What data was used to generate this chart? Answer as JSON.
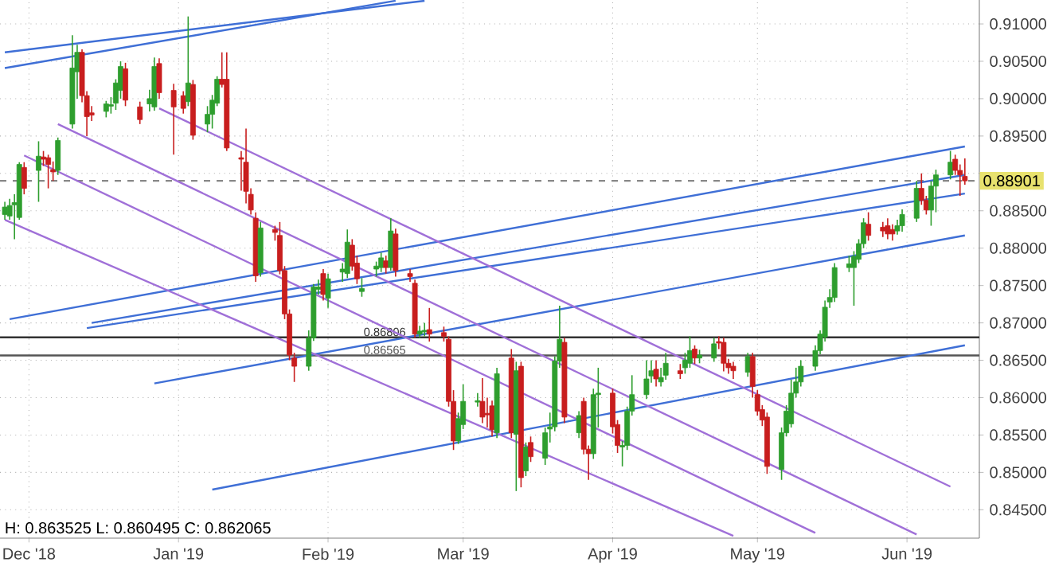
{
  "chart_data": {
    "type": "candlestick",
    "x": [
      "2018-11-26",
      "2018-11-27",
      "2018-11-28",
      "2018-11-29",
      "2018-11-30",
      "2018-12-03",
      "2018-12-04",
      "2018-12-05",
      "2018-12-06",
      "2018-12-07",
      "2018-12-10",
      "2018-12-11",
      "2018-12-12",
      "2018-12-13",
      "2018-12-14",
      "2018-12-17",
      "2018-12-18",
      "2018-12-19",
      "2018-12-20",
      "2018-12-21",
      "2018-12-24",
      "2018-12-26",
      "2018-12-27",
      "2018-12-28",
      "2018-12-31",
      "2019-01-02",
      "2019-01-03",
      "2019-01-04",
      "2019-01-07",
      "2019-01-08",
      "2019-01-09",
      "2019-01-10",
      "2019-01-11",
      "2019-01-14",
      "2019-01-15",
      "2019-01-16",
      "2019-01-17",
      "2019-01-18",
      "2019-01-21",
      "2019-01-22",
      "2019-01-23",
      "2019-01-24",
      "2019-01-25",
      "2019-01-28",
      "2019-01-29",
      "2019-01-30",
      "2019-01-31",
      "2019-02-01",
      "2019-02-04",
      "2019-02-05",
      "2019-02-06",
      "2019-02-07",
      "2019-02-08",
      "2019-02-11",
      "2019-02-12",
      "2019-02-13",
      "2019-02-14",
      "2019-02-15",
      "2019-02-18",
      "2019-02-19",
      "2019-02-20",
      "2019-02-21",
      "2019-02-22",
      "2019-02-25",
      "2019-02-26",
      "2019-02-27",
      "2019-02-28",
      "2019-03-01",
      "2019-03-04",
      "2019-03-05",
      "2019-03-06",
      "2019-03-07",
      "2019-03-08",
      "2019-03-11",
      "2019-03-12",
      "2019-03-13",
      "2019-03-14",
      "2019-03-15",
      "2019-03-18",
      "2019-03-19",
      "2019-03-20",
      "2019-03-21",
      "2019-03-22",
      "2019-03-25",
      "2019-03-26",
      "2019-03-27",
      "2019-03-28",
      "2019-03-29",
      "2019-04-01",
      "2019-04-02",
      "2019-04-03",
      "2019-04-04",
      "2019-04-05",
      "2019-04-08",
      "2019-04-09",
      "2019-04-10",
      "2019-04-11",
      "2019-04-12",
      "2019-04-15",
      "2019-04-16",
      "2019-04-17",
      "2019-04-18",
      "2019-04-19",
      "2019-04-22",
      "2019-04-23",
      "2019-04-24",
      "2019-04-25",
      "2019-04-26",
      "2019-04-29",
      "2019-04-30",
      "2019-05-01",
      "2019-05-02",
      "2019-05-03",
      "2019-05-06",
      "2019-05-07",
      "2019-05-08",
      "2019-05-09",
      "2019-05-10",
      "2019-05-13",
      "2019-05-14",
      "2019-05-15",
      "2019-05-16",
      "2019-05-17",
      "2019-05-20",
      "2019-05-21",
      "2019-05-22",
      "2019-05-23",
      "2019-05-24",
      "2019-05-27",
      "2019-05-28",
      "2019-05-29",
      "2019-05-30",
      "2019-05-31",
      "2019-06-03",
      "2019-06-04",
      "2019-06-05",
      "2019-06-06",
      "2019-06-07",
      "2019-06-10",
      "2019-06-11",
      "2019-06-12",
      "2019-06-13"
    ],
    "ohlc": [
      [
        0.8845,
        0.8862,
        0.8838,
        0.8855
      ],
      [
        0.8843,
        0.8866,
        0.8838,
        0.8857
      ],
      [
        0.8858,
        0.8872,
        0.8812,
        0.8861
      ],
      [
        0.8841,
        0.8915,
        0.8838,
        0.8912
      ],
      [
        0.8908,
        0.8915,
        0.8872,
        0.888
      ],
      [
        0.8904,
        0.8943,
        0.8862,
        0.8923
      ],
      [
        0.8922,
        0.893,
        0.891,
        0.8919
      ],
      [
        0.8921,
        0.8925,
        0.888,
        0.8912
      ],
      [
        0.8905,
        0.8916,
        0.889,
        0.8902
      ],
      [
        0.8904,
        0.8948,
        0.8898,
        0.8944
      ],
      [
        0.8966,
        0.9085,
        0.896,
        0.9041
      ],
      [
        0.9036,
        0.9072,
        0.9,
        0.9062
      ],
      [
        0.9062,
        0.9066,
        0.8995,
        0.9004
      ],
      [
        0.9004,
        0.901,
        0.895,
        0.8976
      ],
      [
        0.8981,
        0.899,
        0.897,
        0.8978
      ],
      [
        0.8983,
        0.8997,
        0.8975,
        0.8993
      ],
      [
        0.899,
        0.9002,
        0.898,
        0.8992
      ],
      [
        0.8994,
        0.9026,
        0.8985,
        0.9021
      ],
      [
        0.9011,
        0.905,
        0.9,
        0.9043
      ],
      [
        0.904,
        0.9048,
        0.899,
        0.8998
      ],
      [
        0.8989,
        0.8996,
        0.8966,
        0.8972
      ],
      [
        0.8993,
        0.9012,
        0.8983,
        0.9
      ],
      [
        0.8989,
        0.9055,
        0.8984,
        0.9043
      ],
      [
        0.9047,
        0.9054,
        0.9,
        0.9008
      ],
      [
        0.9011,
        0.902,
        0.8925,
        0.8989
      ],
      [
        0.9004,
        0.901,
        0.898,
        0.8987
      ],
      [
        0.8996,
        0.911,
        0.899,
        0.9021
      ],
      [
        0.9019,
        0.9025,
        0.8945,
        0.8951
      ],
      [
        0.8966,
        0.899,
        0.8955,
        0.8979
      ],
      [
        0.8979,
        0.9005,
        0.896,
        0.8998
      ],
      [
        0.8994,
        0.903,
        0.899,
        0.9026
      ],
      [
        0.9026,
        0.9062,
        0.9015,
        0.9019
      ],
      [
        0.9026,
        0.9062,
        0.893,
        0.8934
      ],
      [
        0.8921,
        0.893,
        0.8877,
        0.8919
      ],
      [
        0.8915,
        0.896,
        0.886,
        0.8876
      ],
      [
        0.8872,
        0.888,
        0.8845,
        0.8851
      ],
      [
        0.884,
        0.8848,
        0.8755,
        0.8763
      ],
      [
        0.8767,
        0.8835,
        0.8762,
        0.8827
      ],
      [
        0.8825,
        0.883,
        0.881,
        0.8821
      ],
      [
        0.8817,
        0.8835,
        0.8765,
        0.877
      ],
      [
        0.877,
        0.8776,
        0.8705,
        0.8712
      ],
      [
        0.8712,
        0.8718,
        0.865,
        0.8657
      ],
      [
        0.8653,
        0.866,
        0.8621,
        0.8642
      ],
      [
        0.8642,
        0.869,
        0.8636,
        0.868
      ],
      [
        0.868,
        0.8752,
        0.8676,
        0.8748
      ],
      [
        0.8745,
        0.8758,
        0.8738,
        0.8748
      ],
      [
        0.8766,
        0.8772,
        0.873,
        0.8738
      ],
      [
        0.8733,
        0.8766,
        0.872,
        0.8759
      ],
      [
        0.8768,
        0.878,
        0.8755,
        0.8772
      ],
      [
        0.8766,
        0.8825,
        0.876,
        0.8808
      ],
      [
        0.8804,
        0.8812,
        0.877,
        0.8776
      ],
      [
        0.878,
        0.879,
        0.8752,
        0.8759
      ],
      [
        0.8742,
        0.876,
        0.8735,
        0.8746
      ],
      [
        0.8772,
        0.8782,
        0.8762,
        0.8776
      ],
      [
        0.8774,
        0.8794,
        0.8768,
        0.8787
      ],
      [
        0.8783,
        0.879,
        0.8766,
        0.8774
      ],
      [
        0.8774,
        0.884,
        0.877,
        0.8823
      ],
      [
        0.8819,
        0.8826,
        0.8762,
        0.877
      ],
      [
        0.8766,
        0.8772,
        0.8755,
        0.8762
      ],
      [
        0.8753,
        0.8758,
        0.868,
        0.8685
      ],
      [
        0.8685,
        0.8696,
        0.868,
        0.8689
      ],
      [
        0.8688,
        0.87,
        0.8682,
        0.869
      ],
      [
        0.8691,
        0.872,
        0.8675,
        0.8685
      ],
      [
        0.8687,
        0.8695,
        0.8675,
        0.8682
      ],
      [
        0.8678,
        0.8682,
        0.8588,
        0.8595
      ],
      [
        0.8595,
        0.861,
        0.853,
        0.8542
      ],
      [
        0.8542,
        0.858,
        0.8538,
        0.8572
      ],
      [
        0.8564,
        0.8618,
        0.8558,
        0.8595
      ],
      [
        0.8594,
        0.8606,
        0.8588,
        0.8596
      ],
      [
        0.8595,
        0.8626,
        0.8566,
        0.8574
      ],
      [
        0.8579,
        0.86,
        0.856,
        0.8577
      ],
      [
        0.8589,
        0.8596,
        0.8548,
        0.8557
      ],
      [
        0.8553,
        0.864,
        0.8546,
        0.8632
      ],
      [
        0.8653,
        0.8665,
        0.8546,
        0.8553
      ],
      [
        0.8551,
        0.8648,
        0.8475,
        0.8636
      ],
      [
        0.8642,
        0.8648,
        0.848,
        0.8493
      ],
      [
        0.8502,
        0.854,
        0.8495,
        0.8534
      ],
      [
        0.854,
        0.8548,
        0.8514,
        0.8521
      ],
      [
        0.8519,
        0.856,
        0.851,
        0.8553
      ],
      [
        0.8558,
        0.858,
        0.854,
        0.8561
      ],
      [
        0.8561,
        0.8655,
        0.8555,
        0.8649
      ],
      [
        0.8649,
        0.8723,
        0.864,
        0.8678
      ],
      [
        0.8674,
        0.868,
        0.8566,
        0.8574
      ],
      [
        0.8553,
        0.8582,
        0.8546,
        0.8576
      ],
      [
        0.8595,
        0.86,
        0.8524,
        0.8531
      ],
      [
        0.8531,
        0.8536,
        0.849,
        0.8525
      ],
      [
        0.8525,
        0.8612,
        0.8518,
        0.8604
      ],
      [
        0.8604,
        0.864,
        0.856,
        0.8606
      ],
      [
        0.8606,
        0.8612,
        0.8552,
        0.8561
      ],
      [
        0.8564,
        0.857,
        0.8526,
        0.8536
      ],
      [
        0.8534,
        0.8542,
        0.8508,
        0.8536
      ],
      [
        0.8536,
        0.8588,
        0.853,
        0.8582
      ],
      [
        0.8582,
        0.863,
        0.8576,
        0.8604
      ],
      [
        0.8604,
        0.865,
        0.8598,
        0.8625
      ],
      [
        0.8629,
        0.865,
        0.862,
        0.8636
      ],
      [
        0.8638,
        0.865,
        0.8615,
        0.8625
      ],
      [
        0.8621,
        0.864,
        0.8615,
        0.8627
      ],
      [
        0.863,
        0.866,
        0.8624,
        0.8646
      ],
      [
        0.8636,
        0.8645,
        0.8625,
        0.8632
      ],
      [
        0.864,
        0.866,
        0.8632,
        0.865
      ],
      [
        0.8646,
        0.8682,
        0.864,
        0.8663
      ],
      [
        0.8665,
        0.867,
        0.8645,
        0.8653
      ],
      [
        0.8653,
        0.8664,
        0.8646,
        0.8657
      ],
      [
        0.8653,
        0.868,
        0.8648,
        0.8672
      ],
      [
        0.8675,
        0.8682,
        0.8665,
        0.8673
      ],
      [
        0.8674,
        0.868,
        0.8635,
        0.8646
      ],
      [
        0.8646,
        0.8652,
        0.8632,
        0.864
      ],
      [
        0.8642,
        0.8648,
        0.8625,
        0.8636
      ],
      [
        0.8634,
        0.866,
        0.8628,
        0.8655
      ],
      [
        0.8655,
        0.866,
        0.86,
        0.8615
      ],
      [
        0.8604,
        0.861,
        0.8576,
        0.8582
      ],
      [
        0.8584,
        0.859,
        0.8562,
        0.857
      ],
      [
        0.8574,
        0.858,
        0.8498,
        0.8508
      ],
      [
        0.8504,
        0.856,
        0.849,
        0.8553
      ],
      [
        0.8553,
        0.859,
        0.8548,
        0.8582
      ],
      [
        0.8565,
        0.8624,
        0.856,
        0.8606
      ],
      [
        0.8606,
        0.864,
        0.86,
        0.8621
      ],
      [
        0.8621,
        0.865,
        0.8615,
        0.8642
      ],
      [
        0.8642,
        0.867,
        0.8636,
        0.8663
      ],
      [
        0.8663,
        0.869,
        0.8658,
        0.8685
      ],
      [
        0.8681,
        0.873,
        0.8675,
        0.8721
      ],
      [
        0.8728,
        0.8745,
        0.872,
        0.8734
      ],
      [
        0.8734,
        0.878,
        0.8728,
        0.8774
      ],
      [
        0.8774,
        0.879,
        0.8768,
        0.8779
      ],
      [
        0.8774,
        0.8796,
        0.8723,
        0.8789
      ],
      [
        0.8785,
        0.8812,
        0.878,
        0.8806
      ],
      [
        0.8806,
        0.884,
        0.88,
        0.8834
      ],
      [
        0.8832,
        0.8848,
        0.881,
        0.8817
      ],
      [
        0.8828,
        0.8835,
        0.8815,
        0.8823
      ],
      [
        0.883,
        0.884,
        0.8812,
        0.8819
      ],
      [
        0.8825,
        0.8832,
        0.881,
        0.8819
      ],
      [
        0.8823,
        0.8838,
        0.8818,
        0.883
      ],
      [
        0.883,
        0.8852,
        0.8822,
        0.8845
      ],
      [
        0.884,
        0.889,
        0.8835,
        0.888
      ],
      [
        0.888,
        0.89,
        0.8858,
        0.8864
      ],
      [
        0.8864,
        0.887,
        0.8845,
        0.8851
      ],
      [
        0.8851,
        0.889,
        0.883,
        0.8883
      ],
      [
        0.8883,
        0.8905,
        0.8848,
        0.8898
      ],
      [
        0.8898,
        0.893,
        0.8892,
        0.8915
      ],
      [
        0.8919,
        0.8925,
        0.8898,
        0.8904
      ],
      [
        0.8904,
        0.8912,
        0.887,
        0.8898
      ],
      [
        0.8896,
        0.892,
        0.8885,
        0.889
      ]
    ],
    "colors": [
      "#2e9e2e",
      "#2e9e2e",
      "#2e9e2e",
      "#2e9e2e",
      "#c81e1e",
      "#2e9e2e",
      "#c81e1e",
      "#c81e1e",
      "#c81e1e",
      "#2e9e2e",
      "#2e9e2e",
      "#2e9e2e",
      "#c81e1e",
      "#c81e1e",
      "#c81e1e",
      "#2e9e2e",
      "#2e9e2e",
      "#2e9e2e",
      "#2e9e2e",
      "#c81e1e",
      "#c81e1e",
      "#2e9e2e",
      "#2e9e2e",
      "#c81e1e",
      "#c81e1e",
      "#c81e1e",
      "#2e9e2e",
      "#c81e1e",
      "#2e9e2e",
      "#2e9e2e",
      "#2e9e2e",
      "#c81e1e",
      "#c81e1e",
      "#c81e1e",
      "#c81e1e",
      "#c81e1e",
      "#c81e1e",
      "#2e9e2e",
      "#c81e1e",
      "#c81e1e",
      "#c81e1e",
      "#c81e1e",
      "#c81e1e",
      "#2e9e2e",
      "#2e9e2e",
      "#2e9e2e",
      "#c81e1e",
      "#2e9e2e",
      "#2e9e2e",
      "#2e9e2e",
      "#c81e1e",
      "#c81e1e",
      "#2e9e2e",
      "#2e9e2e",
      "#2e9e2e",
      "#c81e1e",
      "#2e9e2e",
      "#c81e1e",
      "#c81e1e",
      "#c81e1e",
      "#2e9e2e",
      "#2e9e2e",
      "#c81e1e",
      "#c81e1e",
      "#c81e1e",
      "#c81e1e",
      "#2e9e2e",
      "#2e9e2e",
      "#2e9e2e",
      "#c81e1e",
      "#c81e1e",
      "#c81e1e",
      "#2e9e2e",
      "#c81e1e",
      "#2e9e2e",
      "#c81e1e",
      "#2e9e2e",
      "#c81e1e",
      "#2e9e2e",
      "#2e9e2e",
      "#2e9e2e",
      "#2e9e2e",
      "#c81e1e",
      "#2e9e2e",
      "#c81e1e",
      "#c81e1e",
      "#2e9e2e",
      "#2e9e2e",
      "#c81e1e",
      "#c81e1e",
      "#2e9e2e",
      "#2e9e2e",
      "#2e9e2e",
      "#2e9e2e",
      "#2e9e2e",
      "#c81e1e",
      "#2e9e2e",
      "#2e9e2e",
      "#c81e1e",
      "#2e9e2e",
      "#2e9e2e",
      "#c81e1e",
      "#2e9e2e",
      "#2e9e2e",
      "#c81e1e",
      "#c81e1e",
      "#c81e1e",
      "#c81e1e",
      "#2e9e2e",
      "#c81e1e",
      "#c81e1e",
      "#c81e1e",
      "#c81e1e",
      "#2e9e2e",
      "#2e9e2e",
      "#2e9e2e",
      "#2e9e2e",
      "#2e9e2e",
      "#2e9e2e",
      "#2e9e2e",
      "#2e9e2e",
      "#2e9e2e",
      "#2e9e2e",
      "#2e9e2e",
      "#2e9e2e",
      "#2e9e2e",
      "#2e9e2e",
      "#c81e1e",
      "#c81e1e",
      "#c81e1e",
      "#c81e1e",
      "#2e9e2e",
      "#2e9e2e",
      "#2e9e2e",
      "#c81e1e",
      "#c81e1e",
      "#2e9e2e",
      "#2e9e2e",
      "#2e9e2e",
      "#c81e1e",
      "#c81e1e",
      "#c81e1e"
    ],
    "series": [
      {
        "type": "line",
        "color": "#3f6fd6",
        "x": [
          "2018-11-26",
          "2019-02-21"
        ],
        "values": [
          0.9062,
          0.9131
        ]
      },
      {
        "type": "line",
        "color": "#3f6fd6",
        "x": [
          "2018-11-26",
          "2019-02-15"
        ],
        "values": [
          0.9041,
          0.9131
        ]
      },
      {
        "type": "line",
        "color": "#3f6fd6",
        "x": [
          "2018-11-27",
          "2019-06-13"
        ],
        "values": [
          0.8705,
          0.8936
        ]
      },
      {
        "type": "line",
        "color": "#3f6fd6",
        "x": [
          "2018-12-14",
          "2019-06-13"
        ],
        "values": [
          0.87,
          0.8898
        ]
      },
      {
        "type": "line",
        "color": "#3f6fd6",
        "x": [
          "2018-12-13",
          "2019-06-13"
        ],
        "values": [
          0.8693,
          0.8873
        ]
      },
      {
        "type": "line",
        "color": "#3f6fd6",
        "x": [
          "2018-12-27",
          "2019-06-13"
        ],
        "values": [
          0.8619,
          0.8817
        ]
      },
      {
        "type": "line",
        "color": "#3f6fd6",
        "x": [
          "2019-01-08",
          "2019-06-13"
        ],
        "values": [
          0.8477,
          0.867
        ]
      },
      {
        "type": "line",
        "color": "#a070d8",
        "x": [
          "2018-12-28",
          "2019-06-10"
        ],
        "values": [
          0.8987,
          0.8481
        ]
      },
      {
        "type": "line",
        "color": "#a070d8",
        "x": [
          "2018-12-07",
          "2019-06-03"
        ],
        "values": [
          0.8966,
          0.8417
        ]
      },
      {
        "type": "line",
        "color": "#a070d8",
        "x": [
          "2018-11-30",
          "2019-05-13"
        ],
        "values": [
          0.8924,
          0.8419
        ]
      },
      {
        "type": "line",
        "color": "#a070d8",
        "x": [
          "2018-11-26",
          "2019-04-26"
        ],
        "values": [
          0.8838,
          0.8415
        ]
      }
    ],
    "xlim": [
      "2018-11-25",
      "2019-06-16"
    ],
    "xticks": [
      {
        "value": "2018-12-01",
        "label": "Dec '18"
      },
      {
        "value": "2019-01-01",
        "label": "Jan '19"
      },
      {
        "value": "2019-02-01",
        "label": "Feb '19"
      },
      {
        "value": "2019-03-01",
        "label": "Mar '19"
      },
      {
        "value": "2019-04-01",
        "label": "Apr '19"
      },
      {
        "value": "2019-05-01",
        "label": "May '19"
      },
      {
        "value": "2019-06-01",
        "label": "Jun '19"
      }
    ],
    "ylim": [
      0.8412,
      0.9132
    ],
    "yticks": [
      {
        "value": 0.845,
        "label": "0.84500"
      },
      {
        "value": 0.85,
        "label": "0.85000"
      },
      {
        "value": 0.855,
        "label": "0.85500"
      },
      {
        "value": 0.86,
        "label": "0.86000"
      },
      {
        "value": 0.865,
        "label": "0.86500"
      },
      {
        "value": 0.87,
        "label": "0.87000"
      },
      {
        "value": 0.875,
        "label": "0.87500"
      },
      {
        "value": 0.88,
        "label": "0.88000"
      },
      {
        "value": 0.885,
        "label": "0.88500"
      },
      {
        "value": 0.89,
        "label": null
      },
      {
        "value": 0.895,
        "label": "0.89500"
      },
      {
        "value": 0.9,
        "label": "0.90000"
      },
      {
        "value": 0.905,
        "label": "0.90500"
      },
      {
        "value": 0.91,
        "label": "0.91000"
      }
    ],
    "ref_lines": [
      {
        "axis": "y",
        "value": 0.86806,
        "label": "0.86806",
        "color": "#333333",
        "line_style": "solid"
      },
      {
        "axis": "y",
        "value": 0.86565,
        "label": "0.86565",
        "color": "#555555",
        "line_style": "solid"
      },
      {
        "axis": "y",
        "value": 0.88901,
        "label": "0.88901",
        "color": "#888888",
        "line_style": "dashed"
      }
    ],
    "annotations": [
      "H: 0.863525  L: 0.860495  C: 0.862065"
    ],
    "grid": true
  }
}
